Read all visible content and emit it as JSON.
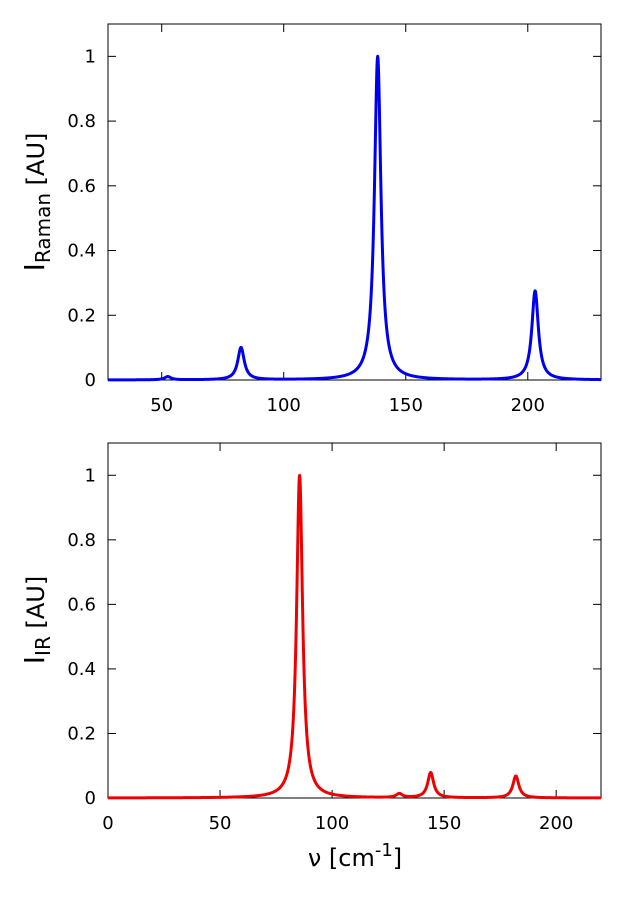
{
  "chart_data": [
    {
      "type": "line",
      "ylabel_main": "I",
      "ylabel_sub": "Raman",
      "ylabel_rest": " [AU]",
      "xlabel_main": "",
      "xlabel_sup": "",
      "xlabel_rest": "",
      "xlim": [
        28,
        230
      ],
      "ylim": [
        0,
        1.1
      ],
      "xticks": [
        50,
        100,
        150,
        200
      ],
      "yticks": [
        0,
        0.2,
        0.4,
        0.6,
        0.8,
        1
      ],
      "ytick_labels": [
        "0",
        "0.2",
        "0.4",
        "0.6",
        "0.8",
        "1"
      ],
      "series": [
        {
          "color": "#0000ee",
          "peaks": [
            {
              "x": 52.5,
              "y": 0.01
            },
            {
              "x": 82.5,
              "y": 0.1
            },
            {
              "x": 138.5,
              "y": 1.0
            },
            {
              "x": 203,
              "y": 0.275
            }
          ]
        }
      ]
    },
    {
      "type": "line",
      "ylabel_main": "I",
      "ylabel_sub": "IR",
      "ylabel_rest": " [AU]",
      "xlabel_main": "ν [cm",
      "xlabel_sup": "-1",
      "xlabel_rest": "]",
      "xlim": [
        0,
        220
      ],
      "ylim": [
        0,
        1.1
      ],
      "xticks": [
        0,
        50,
        100,
        150,
        200
      ],
      "yticks": [
        0,
        0.2,
        0.4,
        0.6,
        0.8,
        1
      ],
      "ytick_labels": [
        "0",
        "0.2",
        "0.4",
        "0.6",
        "0.8",
        "1"
      ],
      "series": [
        {
          "color": "#ee0000",
          "peaks": [
            {
              "x": 85.5,
              "y": 1.0
            },
            {
              "x": 130,
              "y": 0.012
            },
            {
              "x": 144,
              "y": 0.078
            },
            {
              "x": 182,
              "y": 0.068
            }
          ]
        }
      ]
    }
  ]
}
